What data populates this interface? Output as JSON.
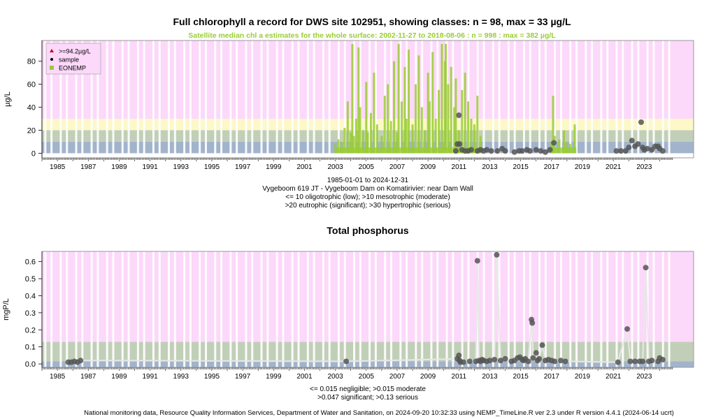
{
  "chart_data": [
    {
      "type": "scatter",
      "title": "Full chlorophyll a record for DWS site 102951, showing classes: n = 98, max = 33 µg/L",
      "subtitle": "Satellite median chl a estimates for the whole surface: 2002-11-27 to 2018-08-06 : n = 998 : max = 382 µg/L",
      "ylabel": "µg/L",
      "xlim": [
        1984,
        2026.2
      ],
      "ylim": [
        -4,
        98
      ],
      "x_ticks": [
        "1985",
        "1987",
        "1989",
        "1991",
        "1993",
        "1995",
        "1997",
        "1999",
        "2001",
        "2003",
        "2005",
        "2007",
        "2009",
        "2011",
        "2013",
        "2015",
        "2017",
        "2019",
        "2021",
        "2023"
      ],
      "y_ticks": [
        "0",
        "20",
        "40",
        "60",
        "80"
      ],
      "legend": {
        "position": "top-left",
        "items": [
          {
            "label": ">=94.2µg/L",
            "symbol": "triangle",
            "color": "#cc0000"
          },
          {
            "label": "sample",
            "symbol": "dot",
            "color": "#000000"
          },
          {
            "label": "EONEMP",
            "symbol": "square",
            "color": "#9acd32"
          }
        ]
      },
      "class_bands": [
        {
          "from": 0,
          "to": 10,
          "color": "#a2b4cc"
        },
        {
          "from": 10,
          "to": 20,
          "color": "#c2cfb8"
        },
        {
          "from": 20,
          "to": 30,
          "color": "#fcf8c8"
        },
        {
          "from": 30,
          "to": 98,
          "color": "#fcd8fa"
        }
      ],
      "satellite_series": {
        "name": "EONEMP",
        "x": [
          2003.0,
          2003.2,
          2003.4,
          2003.6,
          2003.8,
          2004.0,
          2004.1,
          2004.2,
          2004.35,
          2004.5,
          2004.6,
          2004.8,
          2005.0,
          2005.1,
          2005.3,
          2005.5,
          2005.7,
          2006.0,
          2006.2,
          2006.4,
          2006.6,
          2006.8,
          2007.0,
          2007.1,
          2007.3,
          2007.5,
          2007.6,
          2007.75,
          2008.0,
          2008.2,
          2008.4,
          2008.6,
          2008.8,
          2009.0,
          2009.1,
          2009.3,
          2009.5,
          2009.7,
          2009.9,
          2010.1,
          2010.15,
          2010.3,
          2010.5,
          2010.7,
          2010.8,
          2011.0,
          2011.2,
          2011.4,
          2011.6,
          2011.8,
          2012.0,
          2012.2,
          2012.4,
          2017.0,
          2017.1,
          2017.2,
          2017.5,
          2017.8,
          2018.0,
          2018.2,
          2018.5
        ],
        "values": [
          8,
          12,
          10,
          22,
          45,
          18,
          95,
          15,
          30,
          92,
          40,
          20,
          62,
          18,
          35,
          70,
          25,
          15,
          50,
          60,
          28,
          80,
          18,
          95,
          45,
          75,
          30,
          90,
          25,
          60,
          85,
          40,
          20,
          70,
          45,
          88,
          30,
          55,
          95,
          80,
          95,
          60,
          75,
          40,
          65,
          20,
          55,
          70,
          45,
          30,
          25,
          50,
          15,
          10,
          50,
          15,
          12,
          20,
          10,
          8,
          25
        ]
      },
      "sample_series": {
        "name": "sample",
        "x": [
          2010.8,
          2010.9,
          2011.0,
          2011.05,
          2011.2,
          2011.4,
          2011.6,
          2011.8,
          2012.2,
          2012.4,
          2012.6,
          2012.8,
          2013.1,
          2013.5,
          2013.8,
          2014.0,
          2014.6,
          2014.9,
          2015.1,
          2015.4,
          2015.6,
          2016.0,
          2016.3,
          2016.6,
          2016.9,
          2017.15,
          2021.2,
          2021.5,
          2021.8,
          2022.0,
          2022.2,
          2022.4,
          2022.6,
          2022.8,
          2022.9,
          2023.0,
          2023.2,
          2023.5,
          2023.7,
          2023.9,
          2024.0,
          2024.2
        ],
        "values": [
          2,
          8,
          33,
          8,
          3,
          2,
          2,
          3,
          2,
          3,
          2,
          3,
          2,
          2,
          4,
          2,
          1,
          2,
          2,
          3,
          2,
          3,
          2,
          1,
          3,
          9,
          2,
          2,
          2,
          5,
          11,
          6,
          8,
          27,
          5,
          3,
          4,
          3,
          6,
          6,
          4,
          2
        ]
      }
    },
    {
      "type": "scatter",
      "title": "Total phosphorus",
      "ylabel": "mgP/L",
      "xlim": [
        1984,
        2026.2
      ],
      "ylim": [
        -0.02,
        0.66
      ],
      "x_ticks": [
        "1985",
        "1987",
        "1989",
        "1991",
        "1993",
        "1995",
        "1997",
        "1999",
        "2001",
        "2003",
        "2005",
        "2007",
        "2009",
        "2011",
        "2013",
        "2015",
        "2017",
        "2019",
        "2021",
        "2023"
      ],
      "y_ticks": [
        "0.0",
        "0.1",
        "0.2",
        "0.3",
        "0.4",
        "0.5",
        "0.6"
      ],
      "class_bands": [
        {
          "from": -0.02,
          "to": 0.015,
          "color": "#a2b4cc"
        },
        {
          "from": 0.015,
          "to": 0.13,
          "color": "#c2cfb8"
        },
        {
          "from": 0.13,
          "to": 0.66,
          "color": "#fcd8fa"
        }
      ],
      "sample_series": {
        "name": "sample",
        "x": [
          1985.7,
          1985.9,
          1986.1,
          1986.3,
          1986.5,
          2003.7,
          2010.9,
          2011.0,
          2011.05,
          2011.1,
          2011.3,
          2011.7,
          2012.1,
          2012.2,
          2012.3,
          2012.4,
          2012.5,
          2012.6,
          2012.8,
          2013.0,
          2013.3,
          2013.45,
          2013.7,
          2014.0,
          2014.4,
          2014.6,
          2014.8,
          2014.95,
          2015.1,
          2015.2,
          2015.3,
          2015.5,
          2015.7,
          2015.75,
          2015.8,
          2016.0,
          2016.1,
          2016.2,
          2016.4,
          2016.6,
          2016.8,
          2017.0,
          2017.2,
          2017.6,
          2017.9,
          2021.3,
          2021.9,
          2022.1,
          2022.4,
          2022.7,
          2022.9,
          2023.1,
          2023.3,
          2023.5,
          2023.9,
          2024.0,
          2024.2
        ],
        "values": [
          0.01,
          0.01,
          0.015,
          0.01,
          0.02,
          0.015,
          0.03,
          0.05,
          0.02,
          0.01,
          0.01,
          0.015,
          0.015,
          0.605,
          0.02,
          0.015,
          0.025,
          0.02,
          0.015,
          0.02,
          0.025,
          0.64,
          0.02,
          0.03,
          0.015,
          0.02,
          0.035,
          0.04,
          0.025,
          0.02,
          0.03,
          0.015,
          0.26,
          0.24,
          0.035,
          0.065,
          0.02,
          0.03,
          0.11,
          0.02,
          0.025,
          0.02,
          0.015,
          0.02,
          0.015,
          0.01,
          0.205,
          0.015,
          0.015,
          0.015,
          0.015,
          0.565,
          0.015,
          0.02,
          0.015,
          0.035,
          0.025
        ]
      }
    }
  ],
  "captions": {
    "chl_range": "1985-01-01 to 2024-12-31",
    "chl_site": "Vygeboom 619 JT - Vygeboom Dam on Komatirivier: near Dam Wall",
    "chl_class1": "<= 10 oligotrophic (low); >10 mesotrophic (moderate)",
    "chl_class2": ">20 eutrophic (significant); >30 hypertrophic (serious)",
    "tp_class1": "<= 0.015 negligible; >0.015 moderate",
    "tp_class2": ">0.047 significant; >0.13 serious",
    "footer": "National monitoring data, Resource Quality Information Services, Department of Water and Sanitation, on 2024-09-20 10:32:33 using NEMP_TimeLine.R ver 2.3 under R version 4.4.1 (2024-06-14 ucrt)"
  }
}
